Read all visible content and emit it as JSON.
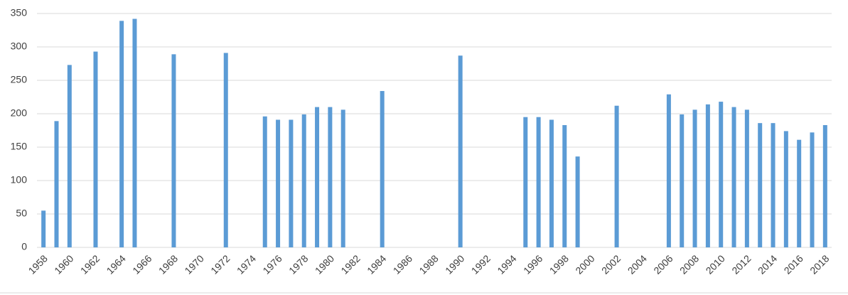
{
  "chart_data": {
    "type": "bar",
    "color": "#5b9bd5",
    "grid": true,
    "ylim": [
      0,
      350
    ],
    "yticks": [
      0,
      50,
      100,
      150,
      200,
      250,
      300,
      350
    ],
    "categories": [
      "1958",
      null,
      "1960",
      null,
      "1962",
      null,
      "1964",
      null,
      "1966",
      null,
      "1968",
      null,
      "1970",
      null,
      "1972",
      null,
      "1974",
      null,
      "1976",
      null,
      "1978",
      null,
      "1980",
      null,
      "1982",
      null,
      "1984",
      null,
      "1986",
      null,
      "1988",
      null,
      "1990",
      null,
      "1992",
      null,
      "1994",
      null,
      "1996",
      null,
      "1998",
      null,
      "2000",
      null,
      "2002",
      null,
      "2004",
      null,
      "2006",
      null,
      "2008",
      null,
      "2010",
      null,
      "2012",
      null,
      "2014",
      null,
      "2016",
      null,
      "2018"
    ],
    "values": [
      55,
      189,
      273,
      null,
      293,
      null,
      339,
      342,
      null,
      null,
      289,
      null,
      null,
      null,
      291,
      null,
      null,
      196,
      191,
      191,
      199,
      210,
      210,
      206,
      null,
      null,
      234,
      null,
      null,
      null,
      null,
      null,
      287,
      null,
      null,
      null,
      null,
      195,
      195,
      191,
      183,
      136,
      null,
      null,
      212,
      null,
      null,
      null,
      229,
      199,
      206,
      214,
      218,
      210,
      206,
      186,
      186,
      174,
      161,
      172,
      183
    ]
  }
}
